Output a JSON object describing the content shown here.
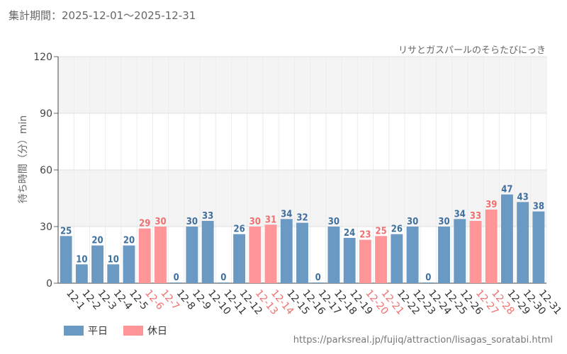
{
  "header": {
    "period": "集計期間：2025-12-01～2025-12-31"
  },
  "chart_data": {
    "type": "bar",
    "title": "リサとガスパールのそらたびにっき",
    "ylabel": "待ち時間（分）min",
    "xlabel": "",
    "ylim": [
      0,
      120
    ],
    "yticks": [
      0,
      30,
      60,
      90,
      120
    ],
    "grid": true,
    "categories": [
      "12-1",
      "12-2",
      "12-3",
      "12-4",
      "12-5",
      "12-6",
      "12-7",
      "12-8",
      "12-9",
      "12-10",
      "12-11",
      "12-12",
      "12-13",
      "12-14",
      "12-15",
      "12-16",
      "12-17",
      "12-18",
      "12-19",
      "12-20",
      "12-21",
      "12-22",
      "12-23",
      "12-24",
      "12-25",
      "12-26",
      "12-27",
      "12-28",
      "12-29",
      "12-30",
      "12-31"
    ],
    "values": [
      25,
      10,
      20,
      10,
      20,
      29,
      30,
      0,
      30,
      33,
      0,
      26,
      30,
      31,
      34,
      32,
      0,
      30,
      24,
      23,
      25,
      26,
      30,
      0,
      30,
      34,
      33,
      39,
      47,
      43,
      38
    ],
    "day_type": [
      "weekday",
      "weekday",
      "weekday",
      "weekday",
      "weekday",
      "holiday",
      "holiday",
      "weekday",
      "weekday",
      "weekday",
      "weekday",
      "weekday",
      "holiday",
      "holiday",
      "weekday",
      "weekday",
      "weekday",
      "weekday",
      "weekday",
      "holiday",
      "holiday",
      "weekday",
      "weekday",
      "weekday",
      "weekday",
      "weekday",
      "holiday",
      "holiday",
      "weekday",
      "weekday",
      "weekday"
    ],
    "legend": [
      {
        "key": "weekday",
        "label": "平日",
        "color": "#6a9ac4"
      },
      {
        "key": "holiday",
        "label": "休日",
        "color": "#ff9596"
      }
    ],
    "legend_position": "bottom-left"
  },
  "colors": {
    "weekday_label": "#3f6f9e",
    "holiday_label": "#f07070",
    "weekday_tick": "#333333",
    "holiday_tick": "#f07070"
  },
  "footer": {
    "url": "https://parksreal.jp/fujiq/attraction/lisagas_soratabi.html"
  }
}
